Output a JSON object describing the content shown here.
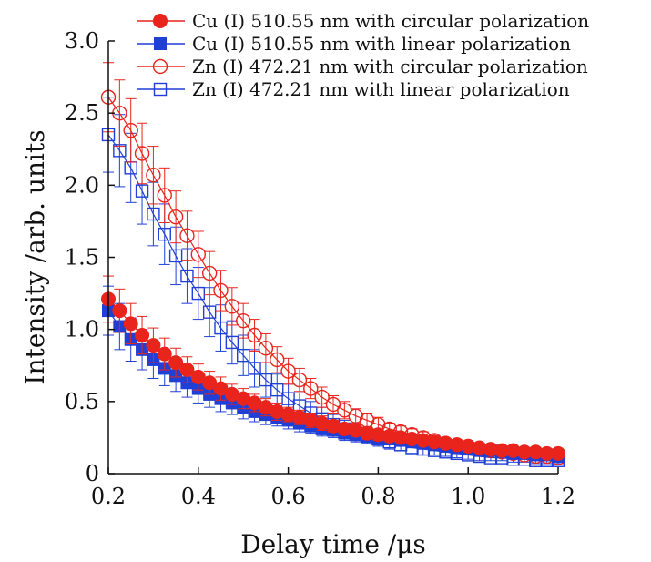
{
  "chart_data": {
    "type": "scatter",
    "title": "",
    "xlabel": "Delay time /μs",
    "ylabel": "Intensity /arb. units",
    "xlim": [
      0.2,
      1.2
    ],
    "ylim": [
      0,
      3.0
    ],
    "xticks": [
      0.2,
      0.4,
      0.6,
      0.8,
      1.0,
      1.2
    ],
    "xtick_labels": [
      "0.2",
      "0.4",
      "0.6",
      "0.8",
      "1.0",
      "1.2"
    ],
    "yticks": [
      0,
      0.5,
      1.0,
      1.5,
      2.0,
      2.5,
      3.0
    ],
    "ytick_labels": [
      "0",
      "0.5",
      "1.0",
      "1.5",
      "2.0",
      "2.5",
      "3.0"
    ],
    "legend_position": "top-right",
    "x": [
      0.2,
      0.225,
      0.25,
      0.275,
      0.3,
      0.325,
      0.35,
      0.375,
      0.4,
      0.425,
      0.45,
      0.475,
      0.5,
      0.525,
      0.55,
      0.575,
      0.6,
      0.625,
      0.65,
      0.675,
      0.7,
      0.725,
      0.75,
      0.775,
      0.8,
      0.825,
      0.85,
      0.875,
      0.9,
      0.925,
      0.95,
      0.975,
      1.0,
      1.025,
      1.05,
      1.075,
      1.1,
      1.125,
      1.15,
      1.175,
      1.2
    ],
    "series": [
      {
        "name": "Cu (I) 510.55 nm with circular polarization",
        "color": "#e8241c",
        "marker": "circle",
        "filled": true,
        "values": [
          1.21,
          1.13,
          1.04,
          0.96,
          0.89,
          0.83,
          0.77,
          0.72,
          0.67,
          0.63,
          0.59,
          0.55,
          0.52,
          0.49,
          0.46,
          0.43,
          0.41,
          0.39,
          0.37,
          0.35,
          0.33,
          0.31,
          0.3,
          0.28,
          0.27,
          0.26,
          0.25,
          0.24,
          0.23,
          0.22,
          0.21,
          0.2,
          0.19,
          0.18,
          0.17,
          0.16,
          0.16,
          0.15,
          0.15,
          0.14,
          0.14
        ],
        "errors": [
          0.16,
          0.15,
          0.14,
          0.13,
          0.12,
          0.11,
          0.1,
          0.09,
          0.09,
          0.08,
          0.08,
          0.07,
          0.07,
          0.06,
          0.06,
          0.06,
          0.05,
          0.05,
          0.05,
          0.05,
          0.04,
          0.04,
          0.04,
          0.04,
          0.04,
          0.03,
          0.03,
          0.03,
          0.03,
          0.03,
          0.03,
          0.03,
          0.02,
          0.02,
          0.02,
          0.02,
          0.02,
          0.02,
          0.02,
          0.02,
          0.02
        ]
      },
      {
        "name": "Cu (I) 510.55 nm with linear polarization",
        "color": "#1f3fd6",
        "marker": "square",
        "filled": true,
        "values": [
          1.13,
          1.02,
          0.93,
          0.86,
          0.79,
          0.73,
          0.68,
          0.63,
          0.59,
          0.55,
          0.52,
          0.49,
          0.46,
          0.43,
          0.41,
          0.39,
          0.37,
          0.35,
          0.33,
          0.31,
          0.3,
          0.28,
          0.27,
          0.26,
          0.25,
          0.24,
          0.23,
          0.22,
          0.21,
          0.2,
          0.19,
          0.18,
          0.17,
          0.16,
          0.16,
          0.15,
          0.14,
          0.14,
          0.13,
          0.13,
          0.12
        ],
        "errors": [
          0.17,
          0.16,
          0.15,
          0.14,
          0.13,
          0.12,
          0.11,
          0.1,
          0.1,
          0.09,
          0.09,
          0.08,
          0.08,
          0.07,
          0.07,
          0.06,
          0.06,
          0.06,
          0.05,
          0.05,
          0.05,
          0.05,
          0.04,
          0.04,
          0.04,
          0.04,
          0.04,
          0.03,
          0.03,
          0.03,
          0.03,
          0.03,
          0.03,
          0.03,
          0.02,
          0.02,
          0.02,
          0.02,
          0.02,
          0.02,
          0.02
        ]
      },
      {
        "name": "Zn (I) 472.21 nm with circular polarization",
        "color": "#e8241c",
        "marker": "circle",
        "filled": false,
        "values": [
          2.61,
          2.5,
          2.38,
          2.22,
          2.07,
          1.93,
          1.78,
          1.65,
          1.52,
          1.39,
          1.27,
          1.16,
          1.06,
          0.96,
          0.87,
          0.79,
          0.71,
          0.65,
          0.59,
          0.53,
          0.48,
          0.44,
          0.4,
          0.37,
          0.34,
          0.31,
          0.29,
          0.27,
          0.25,
          0.23,
          0.21,
          0.2,
          0.19,
          0.17,
          0.16,
          0.15,
          0.14,
          0.13,
          0.12,
          0.12,
          0.11
        ],
        "errors": [
          0.24,
          0.23,
          0.22,
          0.21,
          0.2,
          0.19,
          0.18,
          0.17,
          0.16,
          0.15,
          0.14,
          0.13,
          0.12,
          0.11,
          0.1,
          0.09,
          0.09,
          0.08,
          0.07,
          0.07,
          0.06,
          0.06,
          0.05,
          0.05,
          0.05,
          0.04,
          0.04,
          0.04,
          0.04,
          0.03,
          0.03,
          0.03,
          0.03,
          0.03,
          0.02,
          0.02,
          0.02,
          0.02,
          0.02,
          0.02,
          0.02
        ]
      },
      {
        "name": "Zn (I) 472.21 nm with linear polarization",
        "color": "#1f3fd6",
        "marker": "square",
        "filled": false,
        "values": [
          2.35,
          2.24,
          2.12,
          1.96,
          1.8,
          1.66,
          1.51,
          1.37,
          1.25,
          1.12,
          1.01,
          0.91,
          0.82,
          0.73,
          0.65,
          0.58,
          0.52,
          0.47,
          0.42,
          0.38,
          0.34,
          0.31,
          0.28,
          0.26,
          0.24,
          0.22,
          0.2,
          0.18,
          0.17,
          0.16,
          0.15,
          0.14,
          0.13,
          0.12,
          0.11,
          0.11,
          0.1,
          0.1,
          0.09,
          0.09,
          0.09
        ],
        "errors": [
          0.26,
          0.25,
          0.24,
          0.23,
          0.22,
          0.21,
          0.2,
          0.19,
          0.18,
          0.17,
          0.16,
          0.15,
          0.14,
          0.13,
          0.12,
          0.11,
          0.1,
          0.09,
          0.08,
          0.08,
          0.07,
          0.06,
          0.06,
          0.05,
          0.05,
          0.05,
          0.04,
          0.04,
          0.04,
          0.03,
          0.03,
          0.03,
          0.03,
          0.03,
          0.02,
          0.02,
          0.02,
          0.02,
          0.02,
          0.02,
          0.02
        ]
      }
    ]
  }
}
